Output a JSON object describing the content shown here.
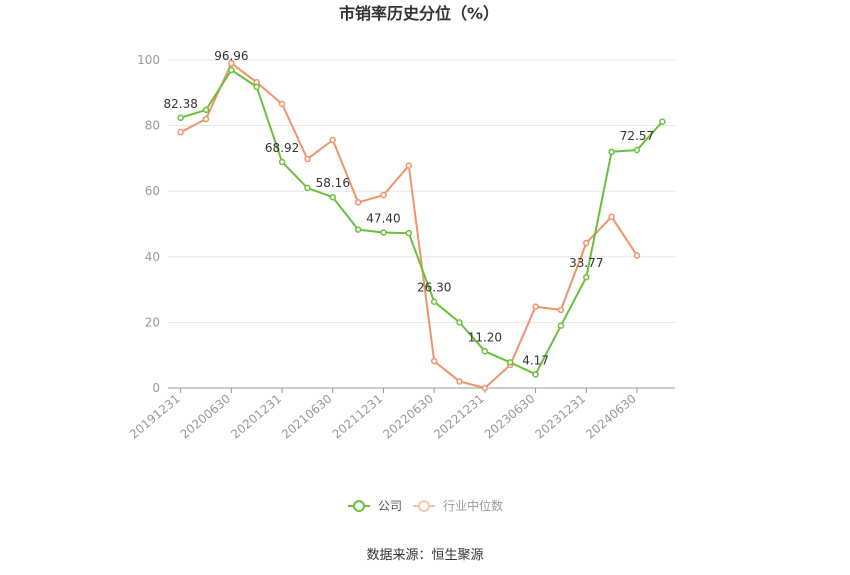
{
  "title": "市销率历史分位（%）",
  "source": "数据来源：恒生聚源",
  "colors": {
    "company": "#67c23a",
    "industry": "#f0936a",
    "grid": "#e6e6e6",
    "axis": "#999999"
  },
  "chart_data": {
    "type": "line",
    "title": "市销率历史分位（%）",
    "ylim": [
      0,
      100
    ],
    "yticks": [
      0,
      20,
      40,
      60,
      80,
      100
    ],
    "grid": true,
    "legend_position": "bottom",
    "x": [
      "20191231",
      "20200331",
      "20200630",
      "20200930",
      "20201231",
      "20210331",
      "20210630",
      "20210930",
      "20211231",
      "20220331",
      "20220630",
      "20220930",
      "20221231",
      "20230331",
      "20230630",
      "20230930",
      "20231231",
      "20240331",
      "20240630",
      "20240930"
    ],
    "xtick_labels": [
      "20191231",
      "20200630",
      "20201231",
      "20210630",
      "20211231",
      "20220630",
      "20221231",
      "20230630",
      "20231231",
      "20240630"
    ],
    "series": [
      {
        "name": "公司",
        "values": [
          82.38,
          84.8,
          96.96,
          91.8,
          68.92,
          61.0,
          58.16,
          48.3,
          47.4,
          47.2,
          26.3,
          20.0,
          11.2,
          7.8,
          4.17,
          19.0,
          33.77,
          72.0,
          72.57,
          81.2
        ],
        "labels": {
          "0": "82.38",
          "2": "96.96",
          "4": "68.92",
          "6": "58.16",
          "8": "47.40",
          "10": "26.30",
          "12": "11.20",
          "14": "4.17",
          "16": "33.77",
          "18": "72.57"
        }
      },
      {
        "name": "行业中位数",
        "values": [
          78.0,
          82.0,
          99.0,
          93.2,
          86.6,
          69.8,
          75.6,
          56.6,
          58.8,
          67.8,
          8.2,
          2.0,
          0.0,
          7.0,
          24.8,
          23.8,
          44.2,
          52.2,
          40.4,
          null
        ]
      }
    ]
  }
}
